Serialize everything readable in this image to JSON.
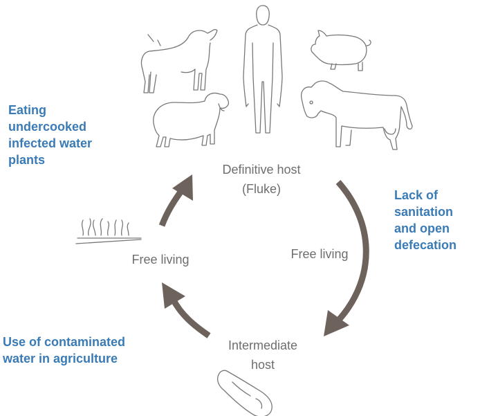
{
  "nodes": [
    {
      "label": [
        "Definitive host",
        "(Fluke)"
      ]
    },
    {
      "label": [
        "Free living"
      ]
    },
    {
      "label": [
        "Intermediate",
        "host"
      ]
    },
    {
      "label": [
        "Free living"
      ]
    }
  ],
  "transmission": [
    {
      "label": [
        "Eating",
        "undercooked",
        "infected water",
        "plants"
      ]
    },
    {
      "label": [
        "Lack of",
        "sanitation",
        "and open",
        "defecation"
      ]
    },
    {
      "label": [
        "Use of contaminated",
        "water in agriculture"
      ]
    }
  ]
}
